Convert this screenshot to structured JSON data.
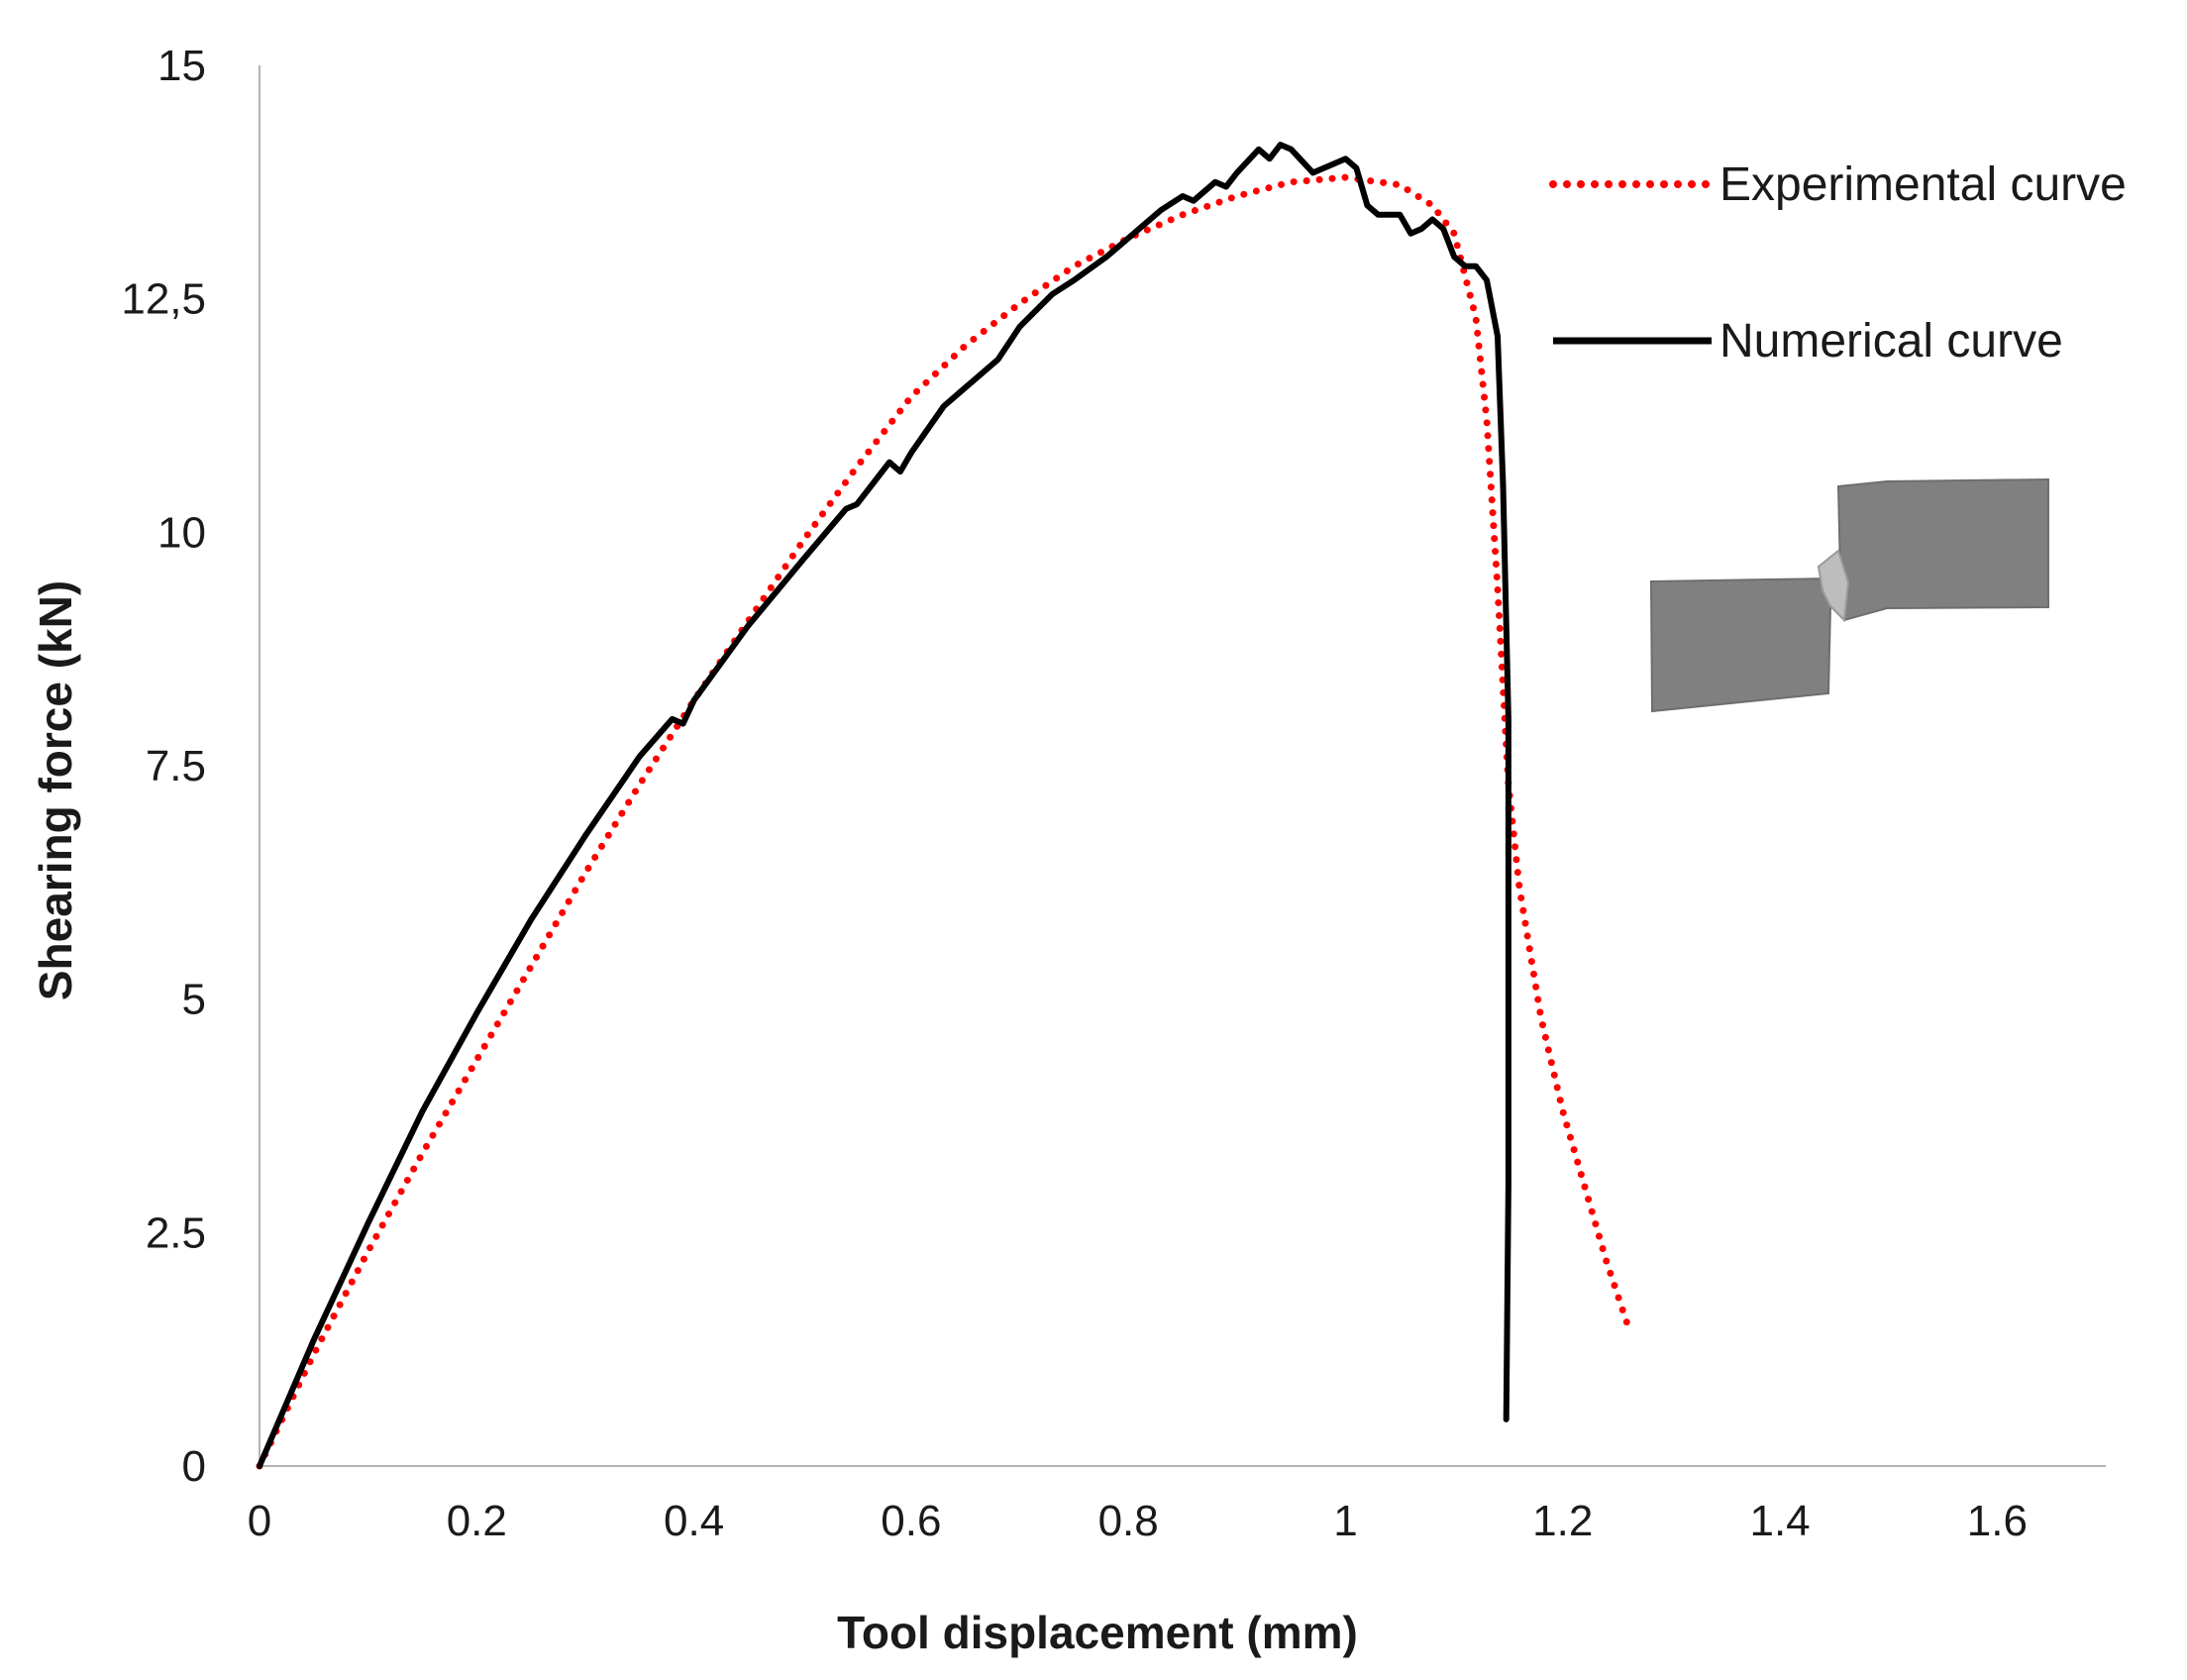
{
  "chart_data": {
    "type": "line",
    "title": "",
    "xlabel": "Tool displacement (mm)",
    "ylabel": "Shearing force (kN)",
    "xlim": [
      0,
      1.7
    ],
    "ylim": [
      0,
      15
    ],
    "x_ticks": [
      0,
      0.2,
      0.4,
      0.6,
      0.8,
      1.0,
      1.2,
      1.4,
      1.6
    ],
    "x_tick_labels": [
      "0",
      "0.2",
      "0.4",
      "0.6",
      "0.8",
      "1",
      "1.2",
      "1.4",
      "1.6"
    ],
    "y_ticks": [
      0,
      2.5,
      5,
      7.5,
      10,
      12.5,
      15
    ],
    "y_tick_labels": [
      "0",
      "2.5",
      "5",
      "7.5",
      "10",
      "12,5",
      "15"
    ],
    "grid": false,
    "legend_position": "top-right",
    "series": [
      {
        "name": "Experimental curve",
        "color": "#ff0000",
        "style": "dotted",
        "x": [
          0,
          0.05,
          0.1,
          0.15,
          0.2,
          0.25,
          0.3,
          0.35,
          0.4,
          0.45,
          0.5,
          0.55,
          0.6,
          0.65,
          0.7,
          0.75,
          0.8,
          0.85,
          0.9,
          0.95,
          1.0,
          1.05,
          1.08,
          1.1,
          1.12,
          1.13,
          1.14,
          1.15,
          1.16,
          1.18,
          1.2,
          1.22,
          1.24,
          1.26
        ],
        "values": [
          0,
          1.2,
          2.3,
          3.35,
          4.35,
          5.35,
          6.35,
          7.3,
          8.2,
          9.05,
          9.9,
          10.7,
          11.45,
          12.0,
          12.45,
          12.85,
          13.15,
          13.4,
          13.6,
          13.75,
          13.8,
          13.72,
          13.5,
          13.2,
          12.3,
          11.2,
          9.4,
          7.3,
          6.2,
          4.8,
          3.8,
          3.0,
          2.2,
          1.5
        ]
      },
      {
        "name": "Numerical curve",
        "color": "#000000",
        "style": "solid",
        "x": [
          0,
          0.05,
          0.1,
          0.15,
          0.2,
          0.25,
          0.3,
          0.35,
          0.38,
          0.39,
          0.4,
          0.45,
          0.5,
          0.54,
          0.55,
          0.58,
          0.59,
          0.6,
          0.63,
          0.65,
          0.68,
          0.7,
          0.73,
          0.75,
          0.78,
          0.8,
          0.83,
          0.85,
          0.86,
          0.88,
          0.89,
          0.9,
          0.92,
          0.93,
          0.94,
          0.95,
          0.97,
          0.99,
          1.0,
          1.01,
          1.02,
          1.03,
          1.05,
          1.06,
          1.07,
          1.08,
          1.09,
          1.1,
          1.11,
          1.12,
          1.13,
          1.14,
          1.145,
          1.15,
          1.15,
          1.148
        ],
        "values": [
          0,
          1.35,
          2.6,
          3.8,
          4.85,
          5.85,
          6.75,
          7.6,
          8.0,
          7.95,
          8.2,
          9.0,
          9.7,
          10.25,
          10.3,
          10.75,
          10.65,
          10.85,
          11.35,
          11.55,
          11.85,
          12.2,
          12.55,
          12.7,
          12.95,
          13.15,
          13.45,
          13.6,
          13.55,
          13.75,
          13.7,
          13.85,
          14.1,
          14.0,
          14.15,
          14.1,
          13.85,
          13.95,
          14.0,
          13.9,
          13.5,
          13.4,
          13.4,
          13.2,
          13.25,
          13.35,
          13.25,
          12.95,
          12.85,
          12.85,
          12.7,
          12.1,
          10.5,
          8.0,
          3.0,
          0.5
        ]
      }
    ],
    "legend": [
      {
        "label": "Experimental curve"
      },
      {
        "label": "Numerical curve"
      }
    ]
  }
}
